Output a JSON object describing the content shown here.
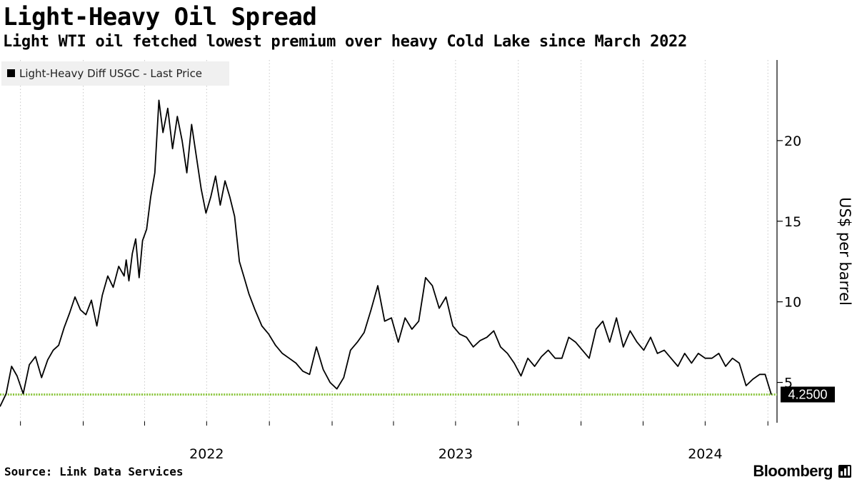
{
  "title": "Light-Heavy Oil Spread",
  "subtitle": "Light WTI oil fetched lowest premium over heavy Cold Lake since March 2022",
  "source": "Source: Link Data Services",
  "brand": "Bloomberg",
  "colors": {
    "line": "#000000",
    "last_line": "#8cc63f",
    "legend_bg": "#f0f0f0",
    "grid": "#c8c8c8"
  },
  "chart_data": {
    "type": "line",
    "legend": [
      "Light-Heavy Diff USGC - Last Price"
    ],
    "legend_placement": "top-left",
    "ylabel": "US$ per barrel",
    "ylim": [
      2.5,
      25
    ],
    "yticks": [
      "5",
      "10",
      "15",
      "20"
    ],
    "xticks": [
      "2022",
      "2023",
      "2024"
    ],
    "x_range": [
      "2021-09-01",
      "2024-10-06"
    ],
    "grid": "vertical dotted",
    "last_value": 4.25,
    "last_value_label": "4.2500",
    "series": [
      {
        "name": "Light-Heavy Diff USGC - Last Price",
        "x": [
          "2021-09-01",
          "2021-09-10",
          "2021-09-18",
          "2021-09-26",
          "2021-10-05",
          "2021-10-14",
          "2021-10-23",
          "2021-11-01",
          "2021-11-10",
          "2021-11-18",
          "2021-11-26",
          "2021-12-04",
          "2021-12-12",
          "2021-12-20",
          "2021-12-28",
          "2022-01-05",
          "2022-01-13",
          "2022-01-21",
          "2022-01-29",
          "2022-02-06",
          "2022-02-14",
          "2022-02-22",
          "2022-03-02",
          "2022-03-05",
          "2022-03-09",
          "2022-03-14",
          "2022-03-19",
          "2022-03-24",
          "2022-03-29",
          "2022-04-04",
          "2022-04-10",
          "2022-04-16",
          "2022-04-22",
          "2022-04-28",
          "2022-05-05",
          "2022-05-12",
          "2022-05-19",
          "2022-05-26",
          "2022-06-02",
          "2022-06-09",
          "2022-06-16",
          "2022-06-23",
          "2022-06-30",
          "2022-07-07",
          "2022-07-14",
          "2022-07-21",
          "2022-07-28",
          "2022-08-04",
          "2022-08-11",
          "2022-08-18",
          "2022-08-25",
          "2022-09-01",
          "2022-09-10",
          "2022-09-20",
          "2022-09-30",
          "2022-10-10",
          "2022-10-20",
          "2022-10-30",
          "2022-11-09",
          "2022-11-19",
          "2022-11-29",
          "2022-12-09",
          "2022-12-19",
          "2022-12-29",
          "2023-01-08",
          "2023-01-18",
          "2023-01-28",
          "2023-02-07",
          "2023-02-17",
          "2023-02-27",
          "2023-03-09",
          "2023-03-19",
          "2023-03-29",
          "2023-04-08",
          "2023-04-18",
          "2023-04-28",
          "2023-05-08",
          "2023-05-18",
          "2023-05-28",
          "2023-06-07",
          "2023-06-17",
          "2023-06-27",
          "2023-07-07",
          "2023-07-17",
          "2023-07-27",
          "2023-08-06",
          "2023-08-16",
          "2023-08-26",
          "2023-09-05",
          "2023-09-15",
          "2023-09-25",
          "2023-10-05",
          "2023-10-15",
          "2023-10-25",
          "2023-11-04",
          "2023-11-14",
          "2023-11-24",
          "2023-12-04",
          "2023-12-14",
          "2023-12-24",
          "2024-01-03",
          "2024-01-13",
          "2024-01-23",
          "2024-02-02",
          "2024-02-12",
          "2024-02-22",
          "2024-03-03",
          "2024-03-13",
          "2024-03-23",
          "2024-04-02",
          "2024-04-12",
          "2024-04-22",
          "2024-05-02",
          "2024-05-12",
          "2024-05-22",
          "2024-06-01",
          "2024-06-11",
          "2024-06-21",
          "2024-07-01",
          "2024-07-11",
          "2024-07-21",
          "2024-07-31",
          "2024-08-10",
          "2024-08-20",
          "2024-08-30",
          "2024-09-09",
          "2024-09-19",
          "2024-09-27",
          "2024-10-06"
        ],
        "y": [
          3.5,
          4.3,
          6.0,
          5.4,
          4.3,
          6.1,
          6.6,
          5.3,
          6.4,
          7.0,
          7.3,
          8.4,
          9.3,
          10.3,
          9.5,
          9.2,
          10.1,
          8.5,
          10.4,
          11.6,
          10.9,
          12.2,
          11.6,
          12.6,
          11.3,
          13.0,
          13.9,
          11.5,
          13.8,
          14.5,
          16.5,
          18.0,
          22.5,
          20.5,
          22.0,
          19.5,
          21.5,
          20.0,
          18.0,
          21.0,
          19.0,
          17.0,
          15.5,
          16.5,
          17.8,
          16.0,
          17.5,
          16.5,
          15.3,
          12.5,
          11.5,
          10.5,
          9.5,
          8.5,
          8.0,
          7.3,
          6.8,
          6.5,
          6.2,
          5.7,
          5.5,
          7.2,
          5.8,
          5.0,
          4.6,
          5.3,
          7.0,
          7.5,
          8.1,
          9.5,
          11.0,
          8.8,
          9.0,
          7.5,
          9.0,
          8.3,
          8.8,
          11.5,
          11.0,
          9.6,
          10.3,
          8.5,
          8.0,
          7.8,
          7.2,
          7.6,
          7.8,
          8.2,
          7.2,
          6.8,
          6.2,
          5.4,
          6.5,
          6.0,
          6.6,
          7.0,
          6.5,
          6.5,
          7.8,
          7.5,
          7.0,
          6.5,
          8.3,
          8.8,
          7.5,
          9.0,
          7.2,
          8.2,
          7.5,
          7.0,
          7.8,
          6.8,
          7.0,
          6.5,
          6.0,
          6.8,
          6.2,
          6.8,
          6.5,
          6.5,
          6.8,
          6.0,
          6.5,
          6.2,
          4.8,
          5.2,
          5.5,
          5.5,
          4.25
        ]
      }
    ]
  }
}
